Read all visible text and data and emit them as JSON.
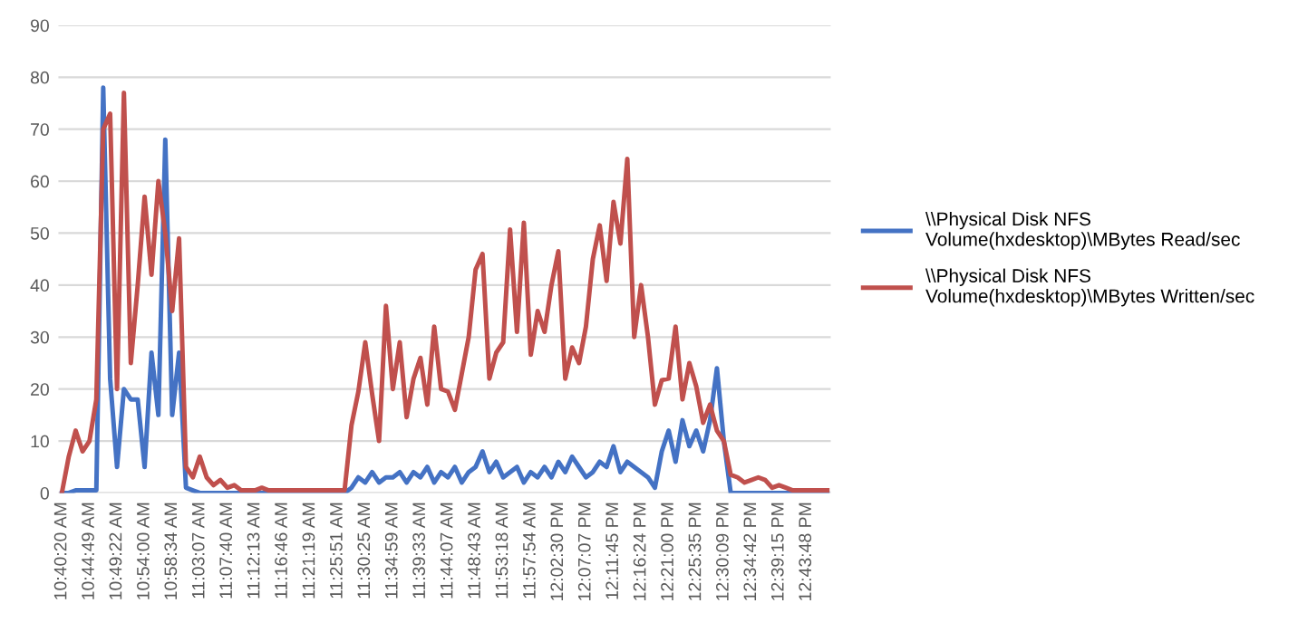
{
  "chart_data": {
    "type": "line",
    "categories": [
      "10:40:20 AM",
      null,
      null,
      null,
      "10:44:49 AM",
      null,
      null,
      null,
      "10:49:22 AM",
      null,
      null,
      null,
      "10:54:00 AM",
      null,
      null,
      null,
      "10:58:34 AM",
      null,
      null,
      null,
      "11:03:07 AM",
      null,
      null,
      null,
      "11:07:40 AM",
      null,
      null,
      null,
      "11:12:13 AM",
      null,
      null,
      null,
      "11:16:46 AM",
      null,
      null,
      null,
      "11:21:19 AM",
      null,
      null,
      null,
      "11:25:51 AM",
      null,
      null,
      null,
      "11:30:25 AM",
      null,
      null,
      null,
      "11:34:59 AM",
      null,
      null,
      null,
      "11:39:33 AM",
      null,
      null,
      null,
      "11:44:07 AM",
      null,
      null,
      null,
      "11:48:43 AM",
      null,
      null,
      null,
      "11:53:18 AM",
      null,
      null,
      null,
      "11:57:54 AM",
      null,
      null,
      null,
      "12:02:30 PM",
      null,
      null,
      null,
      "12:07:07 PM",
      null,
      null,
      null,
      "12:11:45 PM",
      null,
      null,
      null,
      "12:16:24 PM",
      null,
      null,
      null,
      "12:21:00 PM",
      null,
      null,
      null,
      "12:25:35 PM",
      null,
      null,
      null,
      "12:30:09 PM",
      null,
      null,
      null,
      "12:34:42 PM",
      null,
      null,
      null,
      "12:39:15 PM",
      null,
      null,
      null,
      "12:43:48 PM",
      null,
      null,
      null
    ],
    "series": [
      {
        "name": "\\\\Physical Disk NFS Volume(hxdesktop)\\MBytes Read/sec",
        "color": "#4472c4",
        "values": [
          0,
          0,
          0.5,
          0.5,
          0.5,
          0.5,
          78,
          22,
          5,
          20,
          18,
          18,
          5,
          27,
          15,
          68,
          15,
          27,
          1,
          0.5,
          0,
          0,
          0,
          0,
          0,
          0,
          0,
          0,
          0,
          0,
          0,
          0,
          0,
          0,
          0,
          0,
          0,
          0,
          0,
          0,
          0,
          0,
          1,
          3,
          2,
          4,
          2,
          3,
          3,
          4,
          2,
          4,
          3,
          5,
          2,
          4,
          3,
          5,
          2,
          4,
          5,
          8,
          4,
          6,
          3,
          4,
          5,
          2,
          4,
          3,
          5,
          3,
          6,
          4,
          7,
          5,
          3,
          4,
          6,
          5,
          9,
          4,
          6,
          5,
          4,
          3,
          1,
          8,
          12,
          6,
          14,
          9,
          12,
          8,
          14,
          24,
          10,
          0,
          0,
          0,
          0,
          0,
          0,
          0,
          0,
          0,
          0,
          0,
          0,
          0,
          0,
          0
        ]
      },
      {
        "name": "\\\\Physical Disk NFS Volume(hxdesktop)\\MBytes Written/sec",
        "color": "#c0504d",
        "values": [
          0,
          7,
          12,
          8,
          10,
          18,
          70,
          73,
          20,
          77,
          25,
          40,
          57,
          42,
          60,
          50,
          35,
          49,
          5,
          3,
          7,
          3,
          1.5,
          2.5,
          1,
          1.5,
          0.5,
          0.5,
          0.5,
          1,
          0.5,
          0.5,
          0.5,
          0.5,
          0.5,
          0.5,
          0.5,
          0.5,
          0.5,
          0.5,
          0.5,
          0.5,
          13,
          19.5,
          29,
          19,
          10,
          36,
          20,
          29,
          14.6,
          22,
          26,
          17,
          32,
          20,
          19.5,
          16,
          23,
          30,
          43,
          46,
          22,
          27,
          29,
          50.7,
          31,
          52,
          26.6,
          35,
          31,
          40,
          46.5,
          22,
          28,
          25,
          32,
          45,
          51.5,
          40.8,
          56,
          48,
          64.3,
          30,
          40,
          30,
          17,
          21.7,
          22,
          32,
          18,
          25,
          20.5,
          13.5,
          17,
          12,
          10,
          3.5,
          3,
          2,
          2.5,
          3,
          2.5,
          1,
          1.5,
          1,
          0.5,
          0.5,
          0.5,
          0.5,
          0.5,
          0.5
        ]
      }
    ],
    "ylim": [
      0,
      90
    ],
    "yticks": [
      0,
      10,
      20,
      30,
      40,
      50,
      60,
      70,
      80,
      90
    ],
    "grid": "y",
    "legend": "right"
  }
}
